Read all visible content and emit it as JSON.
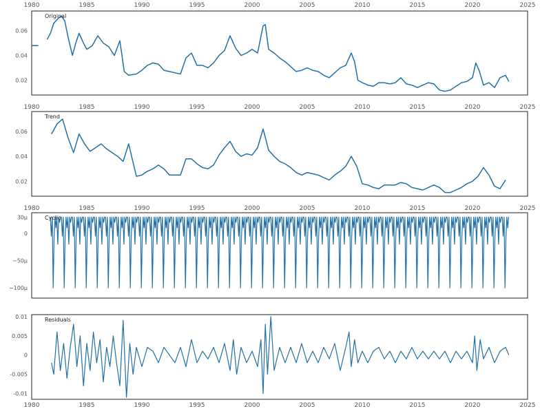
{
  "chart_data": [
    {
      "type": "line",
      "title": "Original",
      "xlim": [
        1980,
        2025
      ],
      "xticks": [
        1980,
        1985,
        1990,
        1995,
        2000,
        2005,
        2010,
        2015,
        2020,
        2025
      ],
      "ylim": [
        0.008,
        0.076
      ],
      "yticks": [
        0.02,
        0.04,
        0.06
      ],
      "ytick_labels": [
        "0.02",
        "0.04",
        "0.06"
      ],
      "color": "#1f6fa8",
      "grid": false,
      "x": [
        1980,
        1980.6,
        1981.4,
        1981.7,
        1982.0,
        1982.4,
        1982.7,
        1983.0,
        1983.3,
        1983.7,
        1984.0,
        1984.3,
        1984.7,
        1985.0,
        1985.5,
        1986.0,
        1986.5,
        1987.0,
        1987.5,
        1988.0,
        1988.4,
        1988.8,
        1989.5,
        1990.0,
        1990.5,
        1991.0,
        1991.5,
        1992.0,
        1992.5,
        1993.0,
        1993.5,
        1994.0,
        1994.5,
        1995.0,
        1995.5,
        1996.0,
        1996.5,
        1997.0,
        1997.5,
        1998.0,
        1998.5,
        1999.0,
        1999.5,
        2000.0,
        2000.5,
        2001.0,
        2001.2,
        2001.5,
        2002.0,
        2002.5,
        2003.0,
        2003.5,
        2004.0,
        2004.5,
        2005.0,
        2005.5,
        2006.0,
        2006.5,
        2007.0,
        2007.5,
        2008.0,
        2008.5,
        2009.0,
        2009.3,
        2009.6,
        2010.0,
        2010.5,
        2011.0,
        2011.5,
        2012.0,
        2012.5,
        2013.0,
        2013.5,
        2014.0,
        2014.5,
        2015.0,
        2015.5,
        2016.0,
        2016.5,
        2017.0,
        2017.5,
        2018.0,
        2018.5,
        2019.0,
        2019.5,
        2020.0,
        2020.3,
        2020.6,
        2021.0,
        2021.5,
        2022.0,
        2022.5,
        2023.0,
        2023.3
      ],
      "y": [
        0.048,
        0.048,
        0.053,
        0.058,
        0.066,
        0.07,
        0.072,
        0.068,
        0.055,
        0.04,
        0.05,
        0.058,
        0.05,
        0.045,
        0.048,
        0.056,
        0.05,
        0.047,
        0.04,
        0.052,
        0.027,
        0.024,
        0.025,
        0.028,
        0.032,
        0.034,
        0.033,
        0.028,
        0.027,
        0.026,
        0.025,
        0.038,
        0.042,
        0.032,
        0.032,
        0.03,
        0.034,
        0.04,
        0.044,
        0.056,
        0.046,
        0.04,
        0.042,
        0.045,
        0.042,
        0.064,
        0.065,
        0.045,
        0.042,
        0.038,
        0.035,
        0.031,
        0.027,
        0.028,
        0.03,
        0.028,
        0.027,
        0.024,
        0.022,
        0.026,
        0.03,
        0.032,
        0.042,
        0.035,
        0.02,
        0.018,
        0.016,
        0.015,
        0.018,
        0.018,
        0.017,
        0.018,
        0.022,
        0.017,
        0.016,
        0.014,
        0.016,
        0.018,
        0.017,
        0.012,
        0.011,
        0.012,
        0.015,
        0.018,
        0.019,
        0.022,
        0.034,
        0.028,
        0.016,
        0.018,
        0.014,
        0.022,
        0.024,
        0.019
      ]
    },
    {
      "type": "line",
      "title": "Trend",
      "xlim": [
        1980,
        2025
      ],
      "xticks": [
        1980,
        1985,
        1990,
        1995,
        2000,
        2005,
        2010,
        2015,
        2020,
        2025
      ],
      "ylim": [
        0.008,
        0.076
      ],
      "yticks": [
        0.02,
        0.04,
        0.06
      ],
      "ytick_labels": [
        "0.02",
        "0.04",
        "0.06"
      ],
      "color": "#1f6fa8",
      "grid": false,
      "x": [
        1981.8,
        1982.3,
        1982.8,
        1983.3,
        1983.8,
        1984.3,
        1984.8,
        1985.3,
        1985.8,
        1986.3,
        1986.8,
        1987.3,
        1987.8,
        1988.3,
        1988.8,
        1989.5,
        1990.0,
        1990.5,
        1991.0,
        1991.5,
        1992.0,
        1992.5,
        1993.0,
        1993.5,
        1994.0,
        1994.5,
        1995.0,
        1995.5,
        1996.0,
        1996.5,
        1997.0,
        1997.5,
        1998.0,
        1998.5,
        1999.0,
        1999.5,
        2000.0,
        2000.5,
        2001.0,
        2001.5,
        2002.0,
        2002.5,
        2003.0,
        2003.5,
        2004.0,
        2004.5,
        2005.0,
        2005.5,
        2006.0,
        2006.5,
        2007.0,
        2007.5,
        2008.0,
        2008.5,
        2009.0,
        2009.5,
        2010.0,
        2010.5,
        2011.0,
        2011.5,
        2012.0,
        2012.5,
        2013.0,
        2013.5,
        2014.0,
        2014.5,
        2015.0,
        2015.5,
        2016.0,
        2016.5,
        2017.0,
        2017.5,
        2018.0,
        2018.5,
        2019.0,
        2019.5,
        2020.0,
        2020.5,
        2021.0,
        2021.5,
        2022.0,
        2022.5,
        2023.0
      ],
      "y": [
        0.058,
        0.066,
        0.07,
        0.055,
        0.043,
        0.058,
        0.05,
        0.044,
        0.047,
        0.05,
        0.046,
        0.043,
        0.04,
        0.036,
        0.05,
        0.024,
        0.025,
        0.028,
        0.03,
        0.033,
        0.03,
        0.025,
        0.025,
        0.025,
        0.038,
        0.038,
        0.034,
        0.031,
        0.03,
        0.033,
        0.041,
        0.047,
        0.052,
        0.044,
        0.04,
        0.042,
        0.041,
        0.047,
        0.062,
        0.045,
        0.04,
        0.036,
        0.034,
        0.031,
        0.027,
        0.025,
        0.027,
        0.026,
        0.025,
        0.023,
        0.021,
        0.025,
        0.028,
        0.032,
        0.04,
        0.032,
        0.018,
        0.017,
        0.015,
        0.014,
        0.017,
        0.017,
        0.017,
        0.019,
        0.018,
        0.015,
        0.014,
        0.013,
        0.015,
        0.017,
        0.015,
        0.011,
        0.011,
        0.013,
        0.015,
        0.018,
        0.02,
        0.024,
        0.031,
        0.025,
        0.016,
        0.014,
        0.021
      ]
    },
    {
      "type": "line",
      "title": "Cyclic",
      "xlim": [
        1980,
        2025
      ],
      "xticks": [
        1980,
        1985,
        1990,
        1995,
        2000,
        2005,
        2010,
        2015,
        2020,
        2025
      ],
      "ylim": [
        -0.000119,
        3.8e-05
      ],
      "yticks": [
        3e-05,
        0,
        -5e-05,
        -0.0001
      ],
      "ytick_labels": [
        "30μ",
        "0",
        "−50μ",
        "−100μ"
      ],
      "color": "#1f6fa8",
      "grid": false,
      "period_years": 1,
      "x_start": 1981.7,
      "x_end": 2023.3,
      "pattern": [
        3e-05,
        -5e-06,
        3e-05,
        -0.0001,
        -1e-05,
        3e-05,
        1e-05,
        3e-05,
        -2e-05,
        3e-05,
        2e-05,
        3e-05
      ]
    },
    {
      "type": "line",
      "title": "Residuals",
      "xlim": [
        1980,
        2025
      ],
      "xticks": [
        1980,
        1985,
        1990,
        1995,
        2000,
        2005,
        2010,
        2015,
        2020,
        2025
      ],
      "ylim": [
        -0.0115,
        0.0105
      ],
      "yticks": [
        0.01,
        0.005,
        0,
        -0.005,
        -0.01
      ],
      "ytick_labels": [
        "0.01",
        "0.005",
        "0",
        "-0.005",
        "-0.01"
      ],
      "color": "#1f6fa8",
      "grid": false,
      "x": [
        1981.8,
        1982.0,
        1982.3,
        1982.6,
        1982.9,
        1983.2,
        1983.5,
        1983.8,
        1984.1,
        1984.4,
        1984.7,
        1985.0,
        1985.3,
        1985.6,
        1985.9,
        1986.2,
        1986.5,
        1986.8,
        1987.1,
        1987.4,
        1987.7,
        1988.0,
        1988.3,
        1988.6,
        1988.9,
        1989.2,
        1989.5,
        1990.0,
        1990.5,
        1991.0,
        1991.5,
        1992.0,
        1992.5,
        1993.0,
        1993.5,
        1994.0,
        1994.5,
        1995.0,
        1995.5,
        1996.0,
        1996.5,
        1997.0,
        1997.5,
        1998.0,
        1998.3,
        1998.6,
        1999.0,
        1999.5,
        2000.0,
        2000.5,
        2000.8,
        2001.0,
        2001.2,
        2001.4,
        2001.7,
        2002.0,
        2002.5,
        2003.0,
        2003.5,
        2004.0,
        2004.5,
        2005.0,
        2005.5,
        2006.0,
        2006.5,
        2007.0,
        2007.5,
        2008.0,
        2008.5,
        2008.8,
        2009.0,
        2009.3,
        2009.6,
        2010.0,
        2010.5,
        2011.0,
        2011.5,
        2012.0,
        2012.5,
        2013.0,
        2013.5,
        2014.0,
        2014.5,
        2015.0,
        2015.5,
        2016.0,
        2016.5,
        2017.0,
        2017.5,
        2018.0,
        2018.5,
        2019.0,
        2019.5,
        2020.0,
        2020.2,
        2020.4,
        2020.7,
        2021.0,
        2021.5,
        2022.0,
        2022.5,
        2023.0,
        2023.3
      ],
      "y": [
        -0.002,
        -0.005,
        0.006,
        -0.004,
        0.003,
        -0.006,
        0.002,
        0.008,
        -0.003,
        0.005,
        -0.008,
        0.003,
        -0.004,
        0.006,
        -0.002,
        0.004,
        -0.007,
        0.002,
        -0.003,
        0.005,
        -0.002,
        -0.008,
        0.009,
        -0.011,
        0.003,
        -0.005,
        0.002,
        -0.003,
        0.002,
        0.001,
        -0.002,
        0.002,
        0.0,
        -0.002,
        0.002,
        -0.003,
        0.004,
        -0.002,
        0.001,
        -0.001,
        0.002,
        -0.002,
        0.003,
        -0.004,
        0.004,
        -0.005,
        0.002,
        -0.002,
        0.001,
        -0.003,
        0.004,
        -0.01,
        0.008,
        -0.005,
        0.01,
        -0.004,
        0.002,
        -0.002,
        0.002,
        -0.002,
        0.003,
        -0.002,
        0.001,
        -0.002,
        0.002,
        -0.001,
        0.003,
        -0.004,
        0.002,
        0.006,
        -0.003,
        0.004,
        -0.002,
        0.001,
        -0.002,
        0.001,
        0.002,
        -0.001,
        0.001,
        -0.002,
        0.001,
        -0.001,
        0.002,
        -0.001,
        0.001,
        -0.001,
        0.001,
        -0.001,
        0.001,
        -0.002,
        0.001,
        -0.001,
        0.001,
        -0.002,
        0.005,
        -0.004,
        0.004,
        -0.001,
        0.002,
        -0.002,
        0.001,
        0.002,
        0.0
      ]
    }
  ]
}
